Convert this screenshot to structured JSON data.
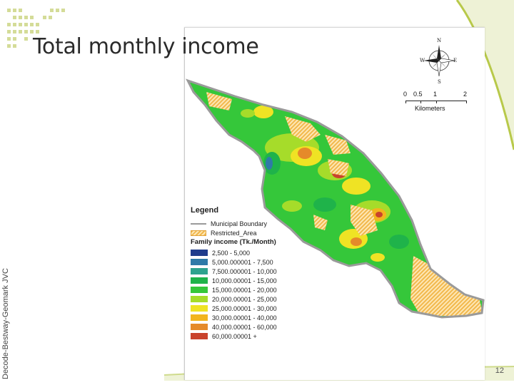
{
  "slide": {
    "title": "Total monthly income",
    "side_credit": "Decode-Bestway-Geomark JVC",
    "page_number": "12",
    "accent_color": "#b8c94a"
  },
  "map": {
    "compass": {
      "n": "N",
      "s": "S",
      "e": "E",
      "w": "W"
    },
    "scale": {
      "ticks": [
        "0",
        "0.5",
        "1",
        "2"
      ],
      "unit": "Kilometers"
    },
    "legend": {
      "title": "Legend",
      "boundary_label": "Municipal Boundary",
      "restricted_label": "Restricted_Area",
      "income_title": "Family income (Tk./Month)",
      "classes": [
        {
          "label": "2,500 - 5,000",
          "color": "#1f3c8c"
        },
        {
          "label": "5,000.000001 - 7,500",
          "color": "#2f7aa8"
        },
        {
          "label": "7,500.000001 - 10,000",
          "color": "#2ea38e"
        },
        {
          "label": "10,000.00001 - 15,000",
          "color": "#1fb34a"
        },
        {
          "label": "15,000.00001 - 20,000",
          "color": "#35c73a"
        },
        {
          "label": "20,000.00001 - 25,000",
          "color": "#a6dc2a"
        },
        {
          "label": "25,000.00001 - 30,000",
          "color": "#efe324"
        },
        {
          "label": "30,000.00001 - 40,000",
          "color": "#f2b51e"
        },
        {
          "label": "40,000.00001 - 60,000",
          "color": "#e58a2a"
        },
        {
          "label": "60,000.00001 +",
          "color": "#c9432c"
        }
      ]
    }
  }
}
